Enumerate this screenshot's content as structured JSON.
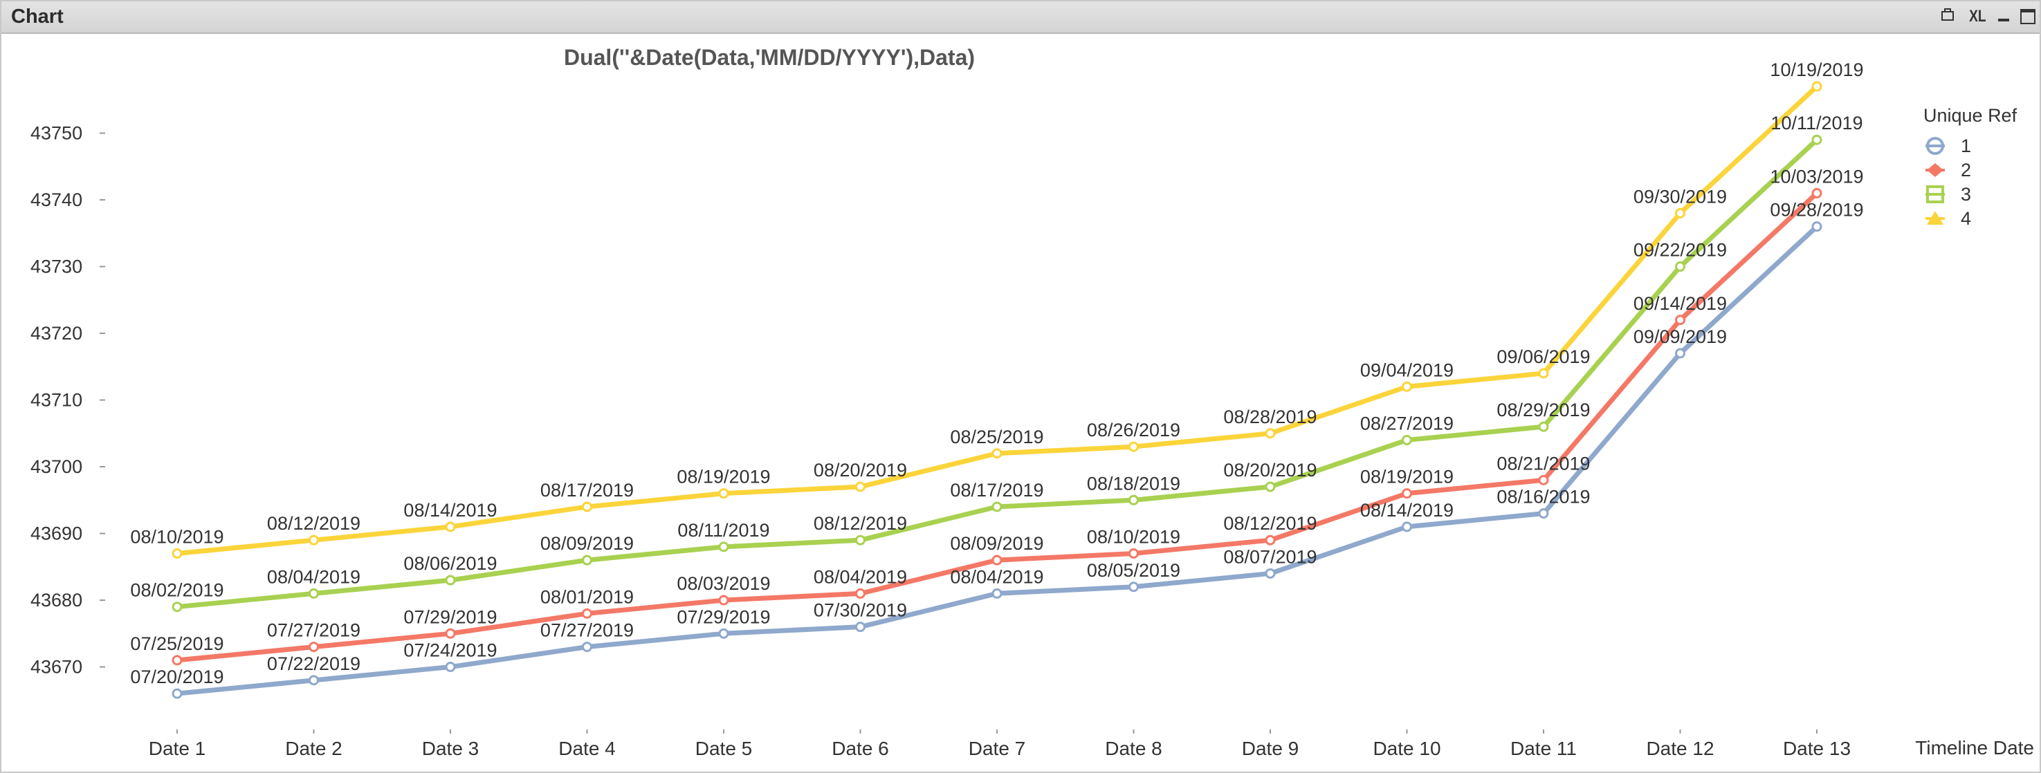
{
  "window": {
    "title": "Chart",
    "toolbar": {
      "xl_label": "XL"
    }
  },
  "colors": {
    "series_1": "#8fa8cc",
    "series_2": "#f47866",
    "series_3": "#a8d150",
    "series_4": "#fbd43a",
    "text": "#333333",
    "title": "#555555"
  },
  "chart_data": {
    "type": "line",
    "title": "Dual(''&Date(Data,'MM/DD/YYYY'),Data)",
    "xlabel": "Timeline Date",
    "ylabel": "",
    "ylim": [
      43665,
      43765
    ],
    "yticks": [
      43670,
      43680,
      43690,
      43700,
      43710,
      43720,
      43730,
      43740,
      43750
    ],
    "grid": false,
    "legend": {
      "title": "Unique Ref",
      "placement": "top-right"
    },
    "categories": [
      "Date 1",
      "Date 2",
      "Date 3",
      "Date 4",
      "Date 5",
      "Date 6",
      "Date 7",
      "Date 8",
      "Date 9",
      "Date 10",
      "Date 11",
      "Date 12",
      "Date 13"
    ],
    "series": [
      {
        "name": "1",
        "marker": "circle",
        "color": "#8fa8cc",
        "values": [
          43666,
          43668,
          43670,
          43673,
          43675,
          43676,
          43681,
          43682,
          43684,
          43691,
          43693,
          43717,
          43736
        ],
        "labels": [
          "07/20/2019",
          "07/22/2019",
          "07/24/2019",
          "07/27/2019",
          "07/29/2019",
          "07/30/2019",
          "08/04/2019",
          "08/05/2019",
          "08/07/2019",
          "08/14/2019",
          "08/16/2019",
          "09/09/2019",
          "09/28/2019"
        ]
      },
      {
        "name": "2",
        "marker": "diamond",
        "color": "#f47866",
        "values": [
          43671,
          43673,
          43675,
          43678,
          43680,
          43681,
          43686,
          43687,
          43689,
          43696,
          43698,
          43722,
          43741
        ],
        "labels": [
          "07/25/2019",
          "07/27/2019",
          "07/29/2019",
          "08/01/2019",
          "08/03/2019",
          "08/04/2019",
          "08/09/2019",
          "08/10/2019",
          "08/12/2019",
          "08/19/2019",
          "08/21/2019",
          "09/14/2019",
          "10/03/2019"
        ]
      },
      {
        "name": "3",
        "marker": "square",
        "color": "#a8d150",
        "values": [
          43679,
          43681,
          43683,
          43686,
          43688,
          43689,
          43694,
          43695,
          43697,
          43704,
          43706,
          43730,
          43749
        ],
        "labels": [
          "08/02/2019",
          "08/04/2019",
          "08/06/2019",
          "08/09/2019",
          "08/11/2019",
          "08/12/2019",
          "08/17/2019",
          "08/18/2019",
          "08/20/2019",
          "08/27/2019",
          "08/29/2019",
          "09/22/2019",
          "10/11/2019"
        ]
      },
      {
        "name": "4",
        "marker": "triangle",
        "color": "#fbd43a",
        "values": [
          43687,
          43689,
          43691,
          43694,
          43696,
          43697,
          43702,
          43703,
          43705,
          43712,
          43714,
          43738,
          43757
        ],
        "labels": [
          "08/10/2019",
          "08/12/2019",
          "08/14/2019",
          "08/17/2019",
          "08/19/2019",
          "08/20/2019",
          "08/25/2019",
          "08/26/2019",
          "08/28/2019",
          "09/04/2019",
          "09/06/2019",
          "09/30/2019",
          "10/19/2019"
        ]
      }
    ]
  }
}
